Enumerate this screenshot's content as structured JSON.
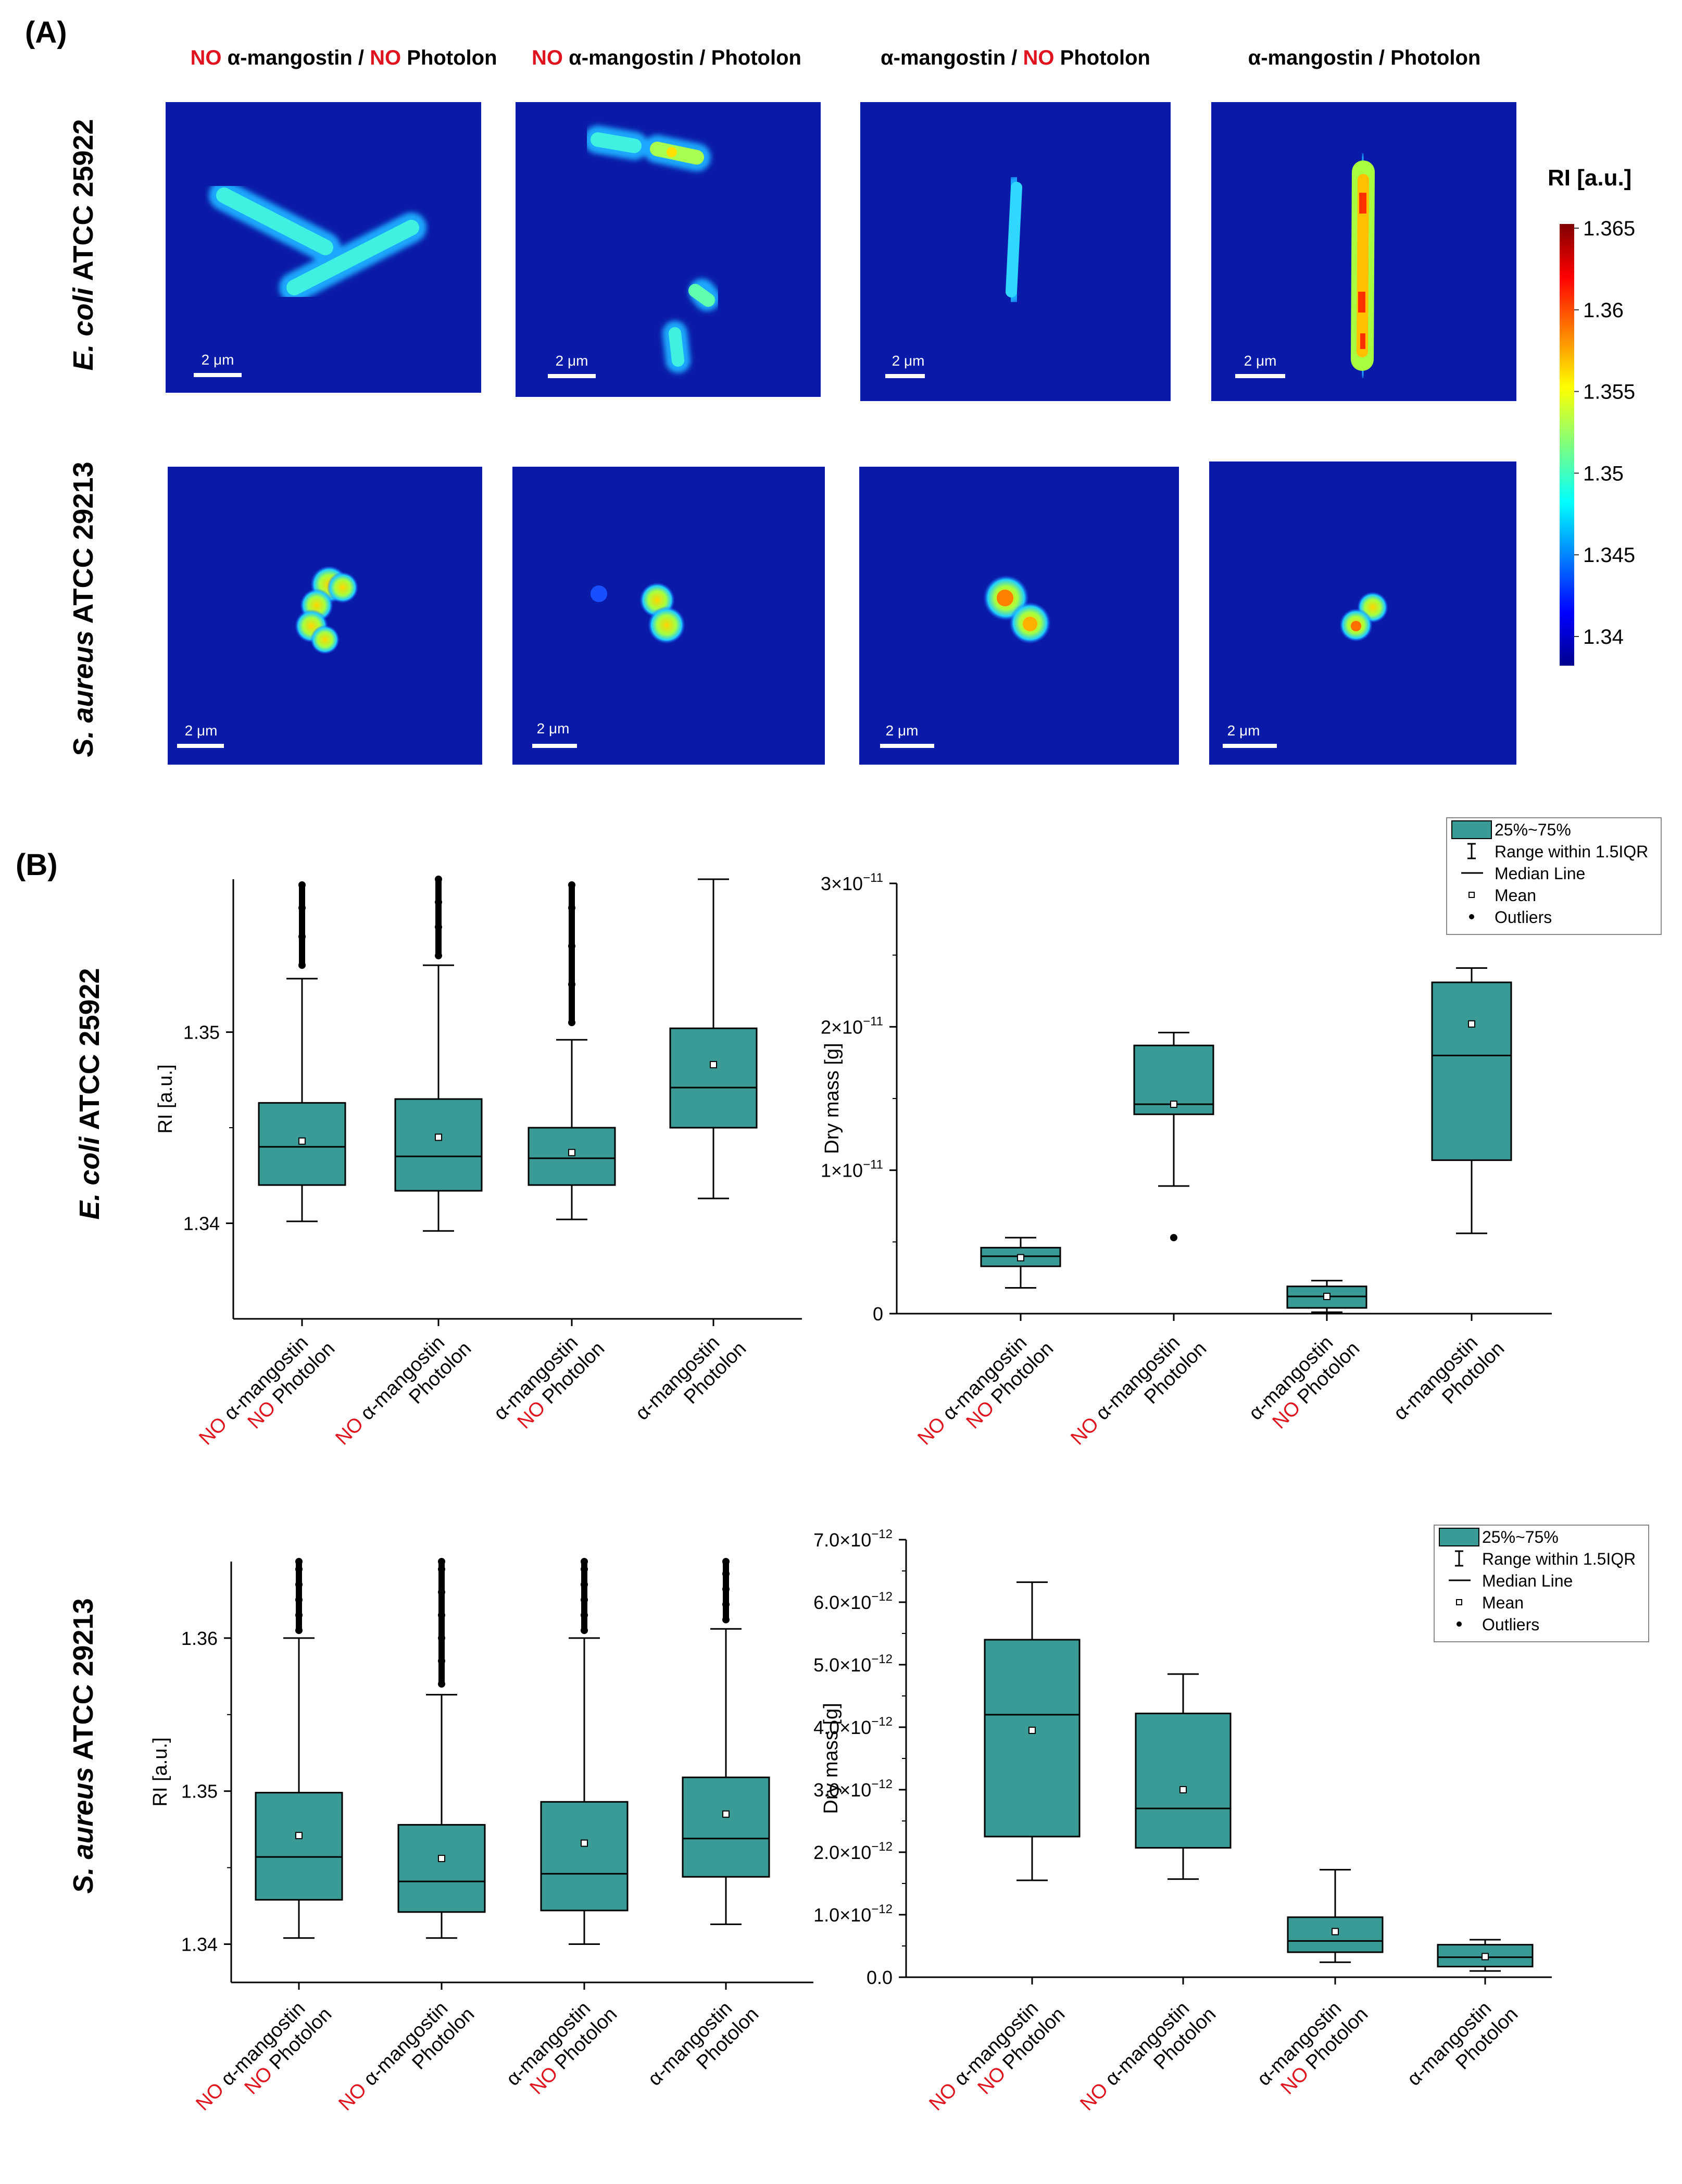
{
  "panels": {
    "a": "(A)",
    "b": "(B)"
  },
  "rows": [
    {
      "italic": "E. coli",
      "rest": " ATCC 25922"
    },
    {
      "italic": "S. aureus",
      "rest": " ATCC 29213"
    }
  ],
  "conditions": [
    {
      "parts": [
        {
          "t": "NO ",
          "red": true
        },
        {
          "t": "α-mangostin / ",
          "red": false
        },
        {
          "t": "NO ",
          "red": true
        },
        {
          "t": "Photolon",
          "red": false
        }
      ]
    },
    {
      "parts": [
        {
          "t": "NO ",
          "red": true
        },
        {
          "t": "α-mangostin /  Photolon",
          "red": false
        }
      ]
    },
    {
      "parts": [
        {
          "t": "α-mangostin /  ",
          "red": false
        },
        {
          "t": "NO ",
          "red": true
        },
        {
          "t": "Photolon",
          "red": false
        }
      ]
    },
    {
      "parts": [
        {
          "t": "α-mangostin / Photolon",
          "red": false
        }
      ]
    }
  ],
  "cat_labels": [
    [
      {
        "t": "NO ",
        "red": true
      },
      {
        "t": "α-mangostin",
        "red": false
      },
      {
        "br": true
      },
      {
        "t": "NO ",
        "red": true
      },
      {
        "t": "Photolon",
        "red": false
      }
    ],
    [
      {
        "t": "NO ",
        "red": true
      },
      {
        "t": "α-mangostin",
        "red": false
      },
      {
        "br": true
      },
      {
        "t": "Photolon",
        "red": false
      }
    ],
    [
      {
        "t": "α-mangostin",
        "red": false
      },
      {
        "br": true
      },
      {
        "t": "NO ",
        "red": true
      },
      {
        "t": "Photolon",
        "red": false
      }
    ],
    [
      {
        "t": "α-mangostin",
        "red": false
      },
      {
        "br": true
      },
      {
        "t": "Photolon",
        "red": false
      }
    ]
  ],
  "colorbar": {
    "title": "RI [a.u.]",
    "ticks": [
      "1.365",
      "1.36",
      "1.355",
      "1.35",
      "1.345",
      "1.34"
    ]
  },
  "scale_bar": "2 μm",
  "colors": {
    "red": "#e0141e",
    "box": "#3a9a96",
    "text": "#000000"
  },
  "legend": [
    {
      "sym": "box",
      "label": "25%~75%"
    },
    {
      "sym": "whisker",
      "label": "Range within 1.5IQR"
    },
    {
      "sym": "line",
      "label": "Median Line"
    },
    {
      "sym": "square",
      "label": "Mean"
    },
    {
      "sym": "dot",
      "label": "Outliers"
    }
  ],
  "chart_data": [
    {
      "type": "box",
      "id": "ecoli-ri",
      "ylabel": "RI [a.u.]",
      "ylim": [
        1.335,
        1.358
      ],
      "yticks": [
        1.34,
        1.35
      ],
      "ytick_labels": [
        "1.34",
        "1.35"
      ],
      "boxes": [
        {
          "q1": 1.342,
          "median": 1.344,
          "q3": 1.3463,
          "wlo": 1.3401,
          "whi": 1.3528,
          "mean": 1.3443,
          "outliers": [
            1.3535,
            1.355,
            1.3565,
            1.3577
          ]
        },
        {
          "q1": 1.3417,
          "median": 1.3435,
          "q3": 1.3465,
          "wlo": 1.3396,
          "whi": 1.3535,
          "mean": 1.3445,
          "outliers": [
            1.354,
            1.3555,
            1.3568,
            1.358
          ]
        },
        {
          "q1": 1.342,
          "median": 1.3434,
          "q3": 1.345,
          "wlo": 1.3402,
          "whi": 1.3496,
          "mean": 1.3437,
          "outliers": [
            1.3505,
            1.3525,
            1.3545,
            1.3565,
            1.3577
          ]
        },
        {
          "q1": 1.345,
          "median": 1.3471,
          "q3": 1.3502,
          "wlo": 1.3413,
          "whi": 1.358,
          "mean": 1.3483,
          "outliers": []
        }
      ]
    },
    {
      "type": "box",
      "id": "ecoli-mass",
      "ylabel": "Dry mass [g]",
      "ylim": [
        0,
        3e-11
      ],
      "yticks": [
        0,
        1e-11,
        2e-11,
        3e-11
      ],
      "ytick_labels": [
        {
          "t": "0"
        },
        {
          "m": "1×10",
          "e": "−11"
        },
        {
          "m": "2×10",
          "e": "−11"
        },
        {
          "m": "3×10",
          "e": "−11"
        }
      ],
      "boxes": [
        {
          "q1": 3.3e-12,
          "median": 4e-12,
          "q3": 4.6e-12,
          "wlo": 1.8e-12,
          "whi": 5.3e-12,
          "mean": 3.9e-12,
          "outliers": []
        },
        {
          "q1": 1.39e-11,
          "median": 1.46e-11,
          "q3": 1.87e-11,
          "wlo": 8.9e-12,
          "whi": 1.96e-11,
          "mean": 1.46e-11,
          "outliers": [
            5.3e-12
          ]
        },
        {
          "q1": 4e-13,
          "median": 1.2e-12,
          "q3": 1.9e-12,
          "wlo": 1e-13,
          "whi": 2.3e-12,
          "mean": 1.2e-12,
          "outliers": []
        },
        {
          "q1": 1.07e-11,
          "median": 1.8e-11,
          "q3": 2.31e-11,
          "wlo": 5.6e-12,
          "whi": 2.41e-11,
          "mean": 2.02e-11,
          "outliers": []
        }
      ]
    },
    {
      "type": "box",
      "id": "saureus-ri",
      "ylabel": "RI [a.u.]",
      "ylim": [
        1.3375,
        1.365
      ],
      "yticks": [
        1.34,
        1.35,
        1.36
      ],
      "ytick_labels": [
        "1.34",
        "1.35",
        "1.36"
      ],
      "boxes": [
        {
          "q1": 1.3429,
          "median": 1.3457,
          "q3": 1.3499,
          "wlo": 1.3404,
          "whi": 1.36,
          "mean": 1.3471,
          "outliers": [
            1.3605,
            1.3615,
            1.3625,
            1.3635,
            1.3645,
            1.365
          ]
        },
        {
          "q1": 1.3421,
          "median": 1.3441,
          "q3": 1.3478,
          "wlo": 1.3404,
          "whi": 1.3563,
          "mean": 1.3456,
          "outliers": [
            1.357,
            1.3585,
            1.36,
            1.3615,
            1.363,
            1.3645,
            1.365
          ]
        },
        {
          "q1": 1.3422,
          "median": 1.3446,
          "q3": 1.3493,
          "wlo": 1.34,
          "whi": 1.36,
          "mean": 1.3466,
          "outliers": [
            1.3605,
            1.3615,
            1.3625,
            1.3635,
            1.3645,
            1.365
          ]
        },
        {
          "q1": 1.3444,
          "median": 1.3469,
          "q3": 1.3509,
          "wlo": 1.3413,
          "whi": 1.3606,
          "mean": 1.3485,
          "outliers": [
            1.3612,
            1.3622,
            1.3632,
            1.3642,
            1.365
          ]
        }
      ]
    },
    {
      "type": "box",
      "id": "saureus-mass",
      "ylabel": "Dry mass [g]",
      "ylim": [
        0,
        7e-12
      ],
      "yticks": [
        0,
        1e-12,
        2e-12,
        3e-12,
        4e-12,
        5e-12,
        6e-12,
        7e-12
      ],
      "ytick_labels": [
        {
          "t": "0.0"
        },
        {
          "m": "1.0×10",
          "e": "−12"
        },
        {
          "m": "2.0×10",
          "e": "−12"
        },
        {
          "m": "3.0×10",
          "e": "−12"
        },
        {
          "m": "4.0×10",
          "e": "−12"
        },
        {
          "m": "5.0×10",
          "e": "−12"
        },
        {
          "m": "6.0×10",
          "e": "−12"
        },
        {
          "m": "7.0×10",
          "e": "−12"
        }
      ],
      "boxes": [
        {
          "q1": 2.25e-12,
          "median": 4.2e-12,
          "q3": 5.4e-12,
          "wlo": 1.55e-12,
          "whi": 6.32e-12,
          "mean": 3.95e-12,
          "outliers": []
        },
        {
          "q1": 2.07e-12,
          "median": 2.7e-12,
          "q3": 4.22e-12,
          "wlo": 1.57e-12,
          "whi": 4.85e-12,
          "mean": 3e-12,
          "outliers": []
        },
        {
          "q1": 4e-13,
          "median": 5.8e-13,
          "q3": 9.6e-13,
          "wlo": 2.4e-13,
          "whi": 1.72e-12,
          "mean": 7.3e-13,
          "outliers": []
        },
        {
          "q1": 1.7e-13,
          "median": 3.2e-13,
          "q3": 5.2e-13,
          "wlo": 1e-13,
          "whi": 6e-13,
          "mean": 3.3e-13,
          "outliers": []
        }
      ]
    }
  ]
}
